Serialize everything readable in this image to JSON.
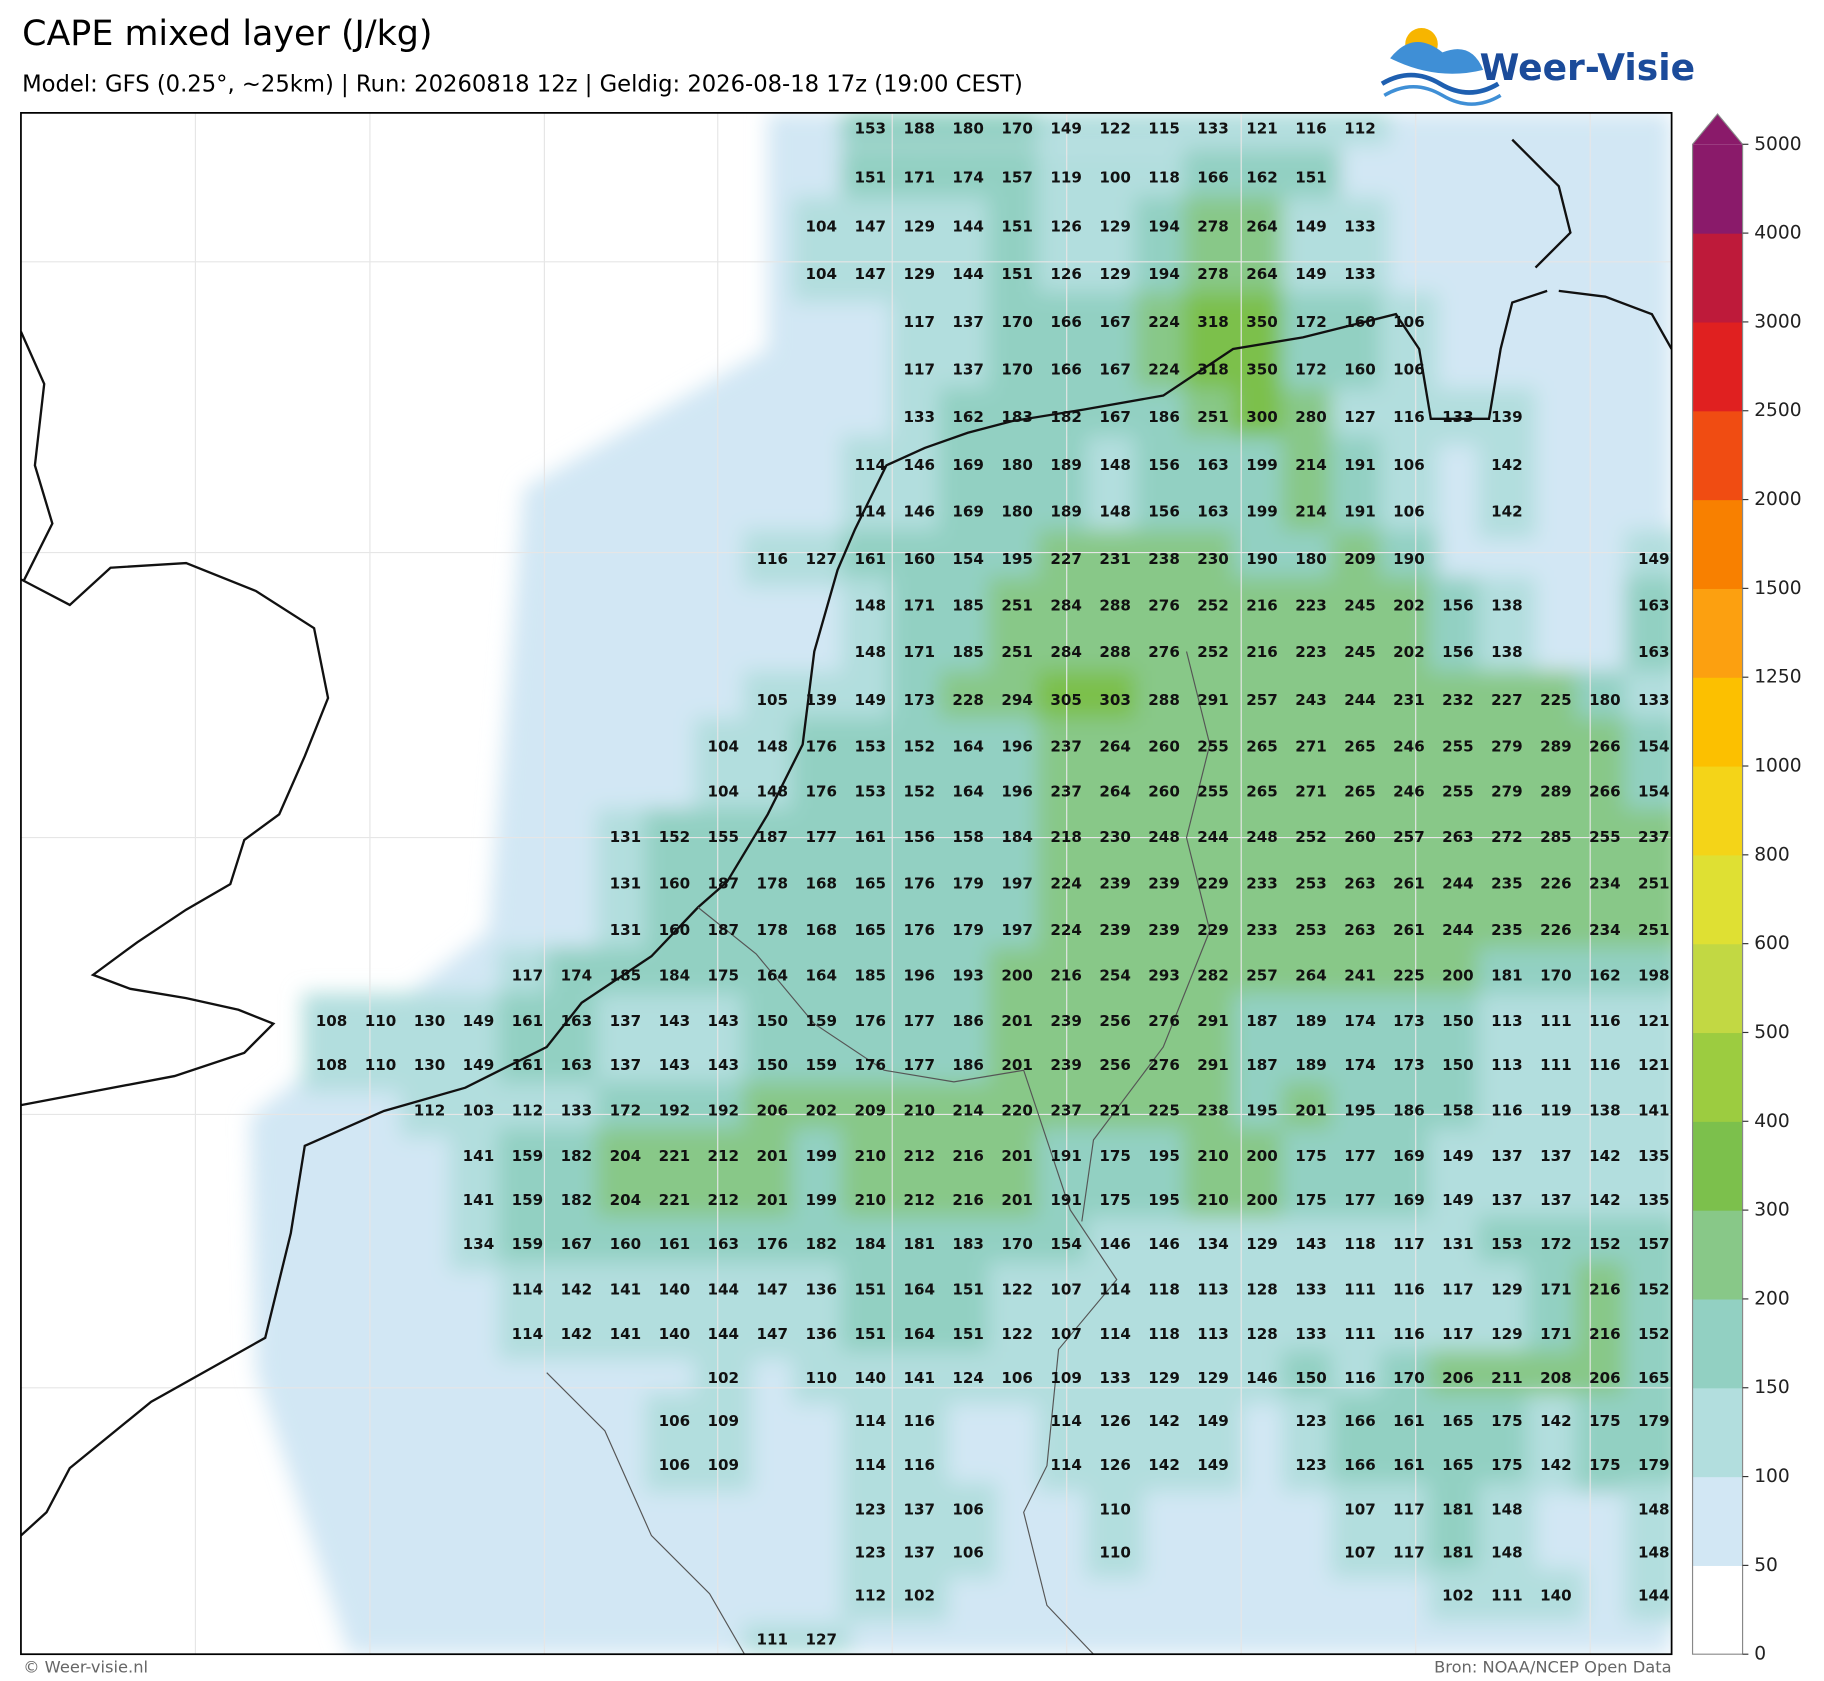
{
  "header": {
    "title": "CAPE mixed layer (J/kg)",
    "subtitle": "Model: GFS (0.25°, ~25km)  |  Run: 20260818 12z  |  Geldig: 2026-08-18 17z (19:00 CEST)",
    "logo": "Weer-Visie"
  },
  "footer": {
    "credit": "© Weer-visie.nl",
    "source": "Bron: NOAA/NCEP Open Data"
  },
  "colorbar": {
    "levels": [
      0,
      50,
      100,
      150,
      200,
      300,
      400,
      500,
      600,
      800,
      1000,
      1250,
      1500,
      2000,
      2500,
      3000,
      4000,
      5000
    ],
    "colors": [
      "#ffffff",
      "#d2e7f4",
      "#b2dede",
      "#92d0c2",
      "#88c888",
      "#7cc04c",
      "#9ccc40",
      "#c2d843",
      "#dfe033",
      "#f4d418",
      "#fcc000",
      "#fca010",
      "#f88000",
      "#f04c12",
      "#e02020",
      "#be1a3a",
      "#8a1a6a"
    ]
  },
  "map": {
    "grid_rows": [
      [
        null,
        null,
        null,
        null,
        null,
        null,
        null,
        null,
        null,
        null,
        null,
        153,
        188,
        180,
        170,
        149,
        122,
        115,
        133,
        121,
        116,
        112,
        null,
        null,
        null,
        null,
        null,
        null
      ],
      [
        null,
        null,
        null,
        null,
        null,
        null,
        null,
        null,
        null,
        null,
        null,
        151,
        171,
        174,
        157,
        119,
        100,
        118,
        166,
        162,
        151,
        null,
        null,
        null,
        null,
        null,
        null,
        null
      ],
      [
        null,
        null,
        null,
        null,
        null,
        null,
        null,
        null,
        null,
        null,
        104,
        147,
        129,
        144,
        151,
        126,
        129,
        194,
        278,
        264,
        149,
        133,
        null,
        null,
        null,
        null,
        null,
        null
      ],
      [
        null,
        null,
        null,
        null,
        null,
        null,
        null,
        null,
        null,
        null,
        104,
        147,
        129,
        144,
        151,
        126,
        129,
        194,
        278,
        264,
        149,
        133,
        null,
        null,
        null,
        null,
        null,
        null
      ],
      [
        null,
        null,
        null,
        null,
        null,
        null,
        null,
        null,
        null,
        null,
        null,
        null,
        117,
        137,
        170,
        166,
        167,
        224,
        318,
        350,
        172,
        160,
        106,
        null,
        null,
        null,
        null,
        null
      ],
      [
        null,
        null,
        null,
        null,
        null,
        null,
        null,
        null,
        null,
        null,
        null,
        null,
        117,
        137,
        170,
        166,
        167,
        224,
        318,
        350,
        172,
        160,
        106,
        null,
        null,
        null,
        null,
        null
      ],
      [
        null,
        null,
        null,
        null,
        null,
        null,
        null,
        null,
        null,
        null,
        null,
        null,
        133,
        162,
        183,
        182,
        167,
        186,
        251,
        300,
        280,
        127,
        116,
        133,
        139,
        null,
        null,
        null
      ],
      [
        null,
        null,
        null,
        null,
        null,
        null,
        null,
        null,
        null,
        null,
        null,
        114,
        146,
        169,
        180,
        189,
        148,
        156,
        163,
        199,
        214,
        191,
        106,
        null,
        142,
        null,
        null,
        null
      ],
      [
        null,
        null,
        null,
        null,
        null,
        null,
        null,
        null,
        null,
        null,
        null,
        114,
        146,
        169,
        180,
        189,
        148,
        156,
        163,
        199,
        214,
        191,
        106,
        null,
        142,
        null,
        null,
        null
      ],
      [
        null,
        null,
        null,
        null,
        null,
        null,
        null,
        null,
        null,
        116,
        127,
        161,
        160,
        154,
        195,
        227,
        231,
        238,
        230,
        190,
        180,
        209,
        190,
        null,
        null,
        null,
        null,
        149
      ],
      [
        null,
        null,
        null,
        null,
        null,
        null,
        null,
        null,
        null,
        null,
        null,
        148,
        171,
        185,
        251,
        284,
        288,
        276,
        252,
        216,
        223,
        245,
        202,
        156,
        138,
        null,
        null,
        163
      ],
      [
        null,
        null,
        null,
        null,
        null,
        null,
        null,
        null,
        null,
        null,
        null,
        148,
        171,
        185,
        251,
        284,
        288,
        276,
        252,
        216,
        223,
        245,
        202,
        156,
        138,
        null,
        null,
        163
      ],
      [
        null,
        null,
        null,
        null,
        null,
        null,
        null,
        null,
        null,
        105,
        139,
        149,
        173,
        228,
        294,
        305,
        303,
        288,
        291,
        257,
        243,
        244,
        231,
        232,
        227,
        225,
        180,
        133
      ],
      [
        null,
        null,
        null,
        null,
        null,
        null,
        null,
        null,
        104,
        148,
        176,
        153,
        152,
        164,
        196,
        237,
        264,
        260,
        255,
        265,
        271,
        265,
        246,
        255,
        279,
        289,
        266,
        154
      ],
      [
        null,
        null,
        null,
        null,
        null,
        null,
        null,
        null,
        104,
        148,
        176,
        153,
        152,
        164,
        196,
        237,
        264,
        260,
        255,
        265,
        271,
        265,
        246,
        255,
        279,
        289,
        266,
        154
      ],
      [
        null,
        null,
        null,
        null,
        null,
        null,
        131,
        152,
        155,
        187,
        177,
        161,
        156,
        158,
        184,
        218,
        230,
        248,
        244,
        248,
        252,
        260,
        257,
        263,
        272,
        285,
        255,
        237
      ],
      [
        null,
        null,
        null,
        null,
        null,
        null,
        131,
        160,
        187,
        178,
        168,
        165,
        176,
        179,
        197,
        224,
        239,
        239,
        229,
        233,
        253,
        263,
        261,
        244,
        235,
        226,
        234,
        251
      ],
      [
        null,
        null,
        null,
        null,
        null,
        null,
        131,
        160,
        187,
        178,
        168,
        165,
        176,
        179,
        197,
        224,
        239,
        239,
        229,
        233,
        253,
        263,
        261,
        244,
        235,
        226,
        234,
        251
      ],
      [
        null,
        null,
        null,
        null,
        117,
        174,
        185,
        184,
        175,
        164,
        164,
        185,
        196,
        193,
        200,
        216,
        254,
        293,
        282,
        257,
        264,
        241,
        225,
        200,
        181,
        170,
        162,
        198
      ],
      [
        108,
        110,
        130,
        149,
        161,
        163,
        137,
        143,
        143,
        150,
        159,
        176,
        177,
        186,
        201,
        239,
        256,
        276,
        291,
        187,
        189,
        174,
        173,
        150,
        113,
        111,
        116,
        121
      ],
      [
        108,
        110,
        130,
        149,
        161,
        163,
        137,
        143,
        143,
        150,
        159,
        176,
        177,
        186,
        201,
        239,
        256,
        276,
        291,
        187,
        189,
        174,
        173,
        150,
        113,
        111,
        116,
        121
      ],
      [
        null,
        null,
        112,
        103,
        112,
        133,
        172,
        192,
        192,
        206,
        202,
        209,
        210,
        214,
        220,
        237,
        221,
        225,
        238,
        195,
        201,
        195,
        186,
        158,
        116,
        119,
        138,
        141
      ],
      [
        null,
        null,
        null,
        141,
        159,
        182,
        204,
        221,
        212,
        201,
        199,
        210,
        212,
        216,
        201,
        191,
        175,
        195,
        210,
        200,
        175,
        177,
        169,
        149,
        137,
        137,
        142,
        135
      ],
      [
        null,
        null,
        null,
        141,
        159,
        182,
        204,
        221,
        212,
        201,
        199,
        210,
        212,
        216,
        201,
        191,
        175,
        195,
        210,
        200,
        175,
        177,
        169,
        149,
        137,
        137,
        142,
        135
      ],
      [
        null,
        null,
        null,
        134,
        159,
        167,
        160,
        161,
        163,
        176,
        182,
        184,
        181,
        183,
        170,
        154,
        146,
        146,
        134,
        129,
        143,
        118,
        117,
        131,
        153,
        172,
        152,
        157
      ],
      [
        null,
        null,
        null,
        null,
        114,
        142,
        141,
        140,
        144,
        147,
        136,
        151,
        164,
        151,
        122,
        107,
        114,
        118,
        113,
        128,
        133,
        111,
        116,
        117,
        129,
        171,
        216,
        152
      ],
      [
        null,
        null,
        null,
        null,
        114,
        142,
        141,
        140,
        144,
        147,
        136,
        151,
        164,
        151,
        122,
        107,
        114,
        118,
        113,
        128,
        133,
        111,
        116,
        117,
        129,
        171,
        216,
        152
      ],
      [
        null,
        null,
        null,
        null,
        null,
        null,
        null,
        null,
        102,
        null,
        110,
        140,
        141,
        124,
        106,
        109,
        133,
        129,
        129,
        146,
        150,
        116,
        170,
        206,
        211,
        208,
        206,
        165
      ],
      [
        null,
        null,
        null,
        null,
        null,
        null,
        null,
        106,
        109,
        null,
        null,
        114,
        116,
        null,
        null,
        114,
        126,
        142,
        149,
        null,
        123,
        166,
        161,
        165,
        175,
        142,
        175,
        179
      ],
      [
        null,
        null,
        null,
        null,
        null,
        null,
        null,
        106,
        109,
        null,
        null,
        114,
        116,
        null,
        null,
        114,
        126,
        142,
        149,
        null,
        123,
        166,
        161,
        165,
        175,
        142,
        175,
        179
      ],
      [
        null,
        null,
        null,
        null,
        null,
        null,
        null,
        null,
        null,
        null,
        null,
        123,
        137,
        106,
        null,
        null,
        110,
        null,
        null,
        null,
        null,
        107,
        117,
        181,
        148,
        null,
        null,
        148
      ],
      [
        null,
        null,
        null,
        null,
        null,
        null,
        null,
        null,
        null,
        null,
        null,
        123,
        137,
        106,
        null,
        null,
        110,
        null,
        null,
        null,
        null,
        107,
        117,
        181,
        148,
        null,
        null,
        148
      ],
      [
        null,
        null,
        null,
        null,
        null,
        null,
        null,
        null,
        null,
        null,
        null,
        112,
        102,
        null,
        null,
        null,
        null,
        null,
        null,
        null,
        null,
        null,
        null,
        102,
        111,
        140,
        null,
        144
      ],
      [
        null,
        null,
        null,
        null,
        null,
        null,
        null,
        null,
        null,
        111,
        127,
        null,
        null,
        null,
        null,
        null,
        null,
        null,
        null,
        null,
        null,
        null,
        null,
        null,
        null,
        null,
        null,
        null
      ]
    ]
  }
}
